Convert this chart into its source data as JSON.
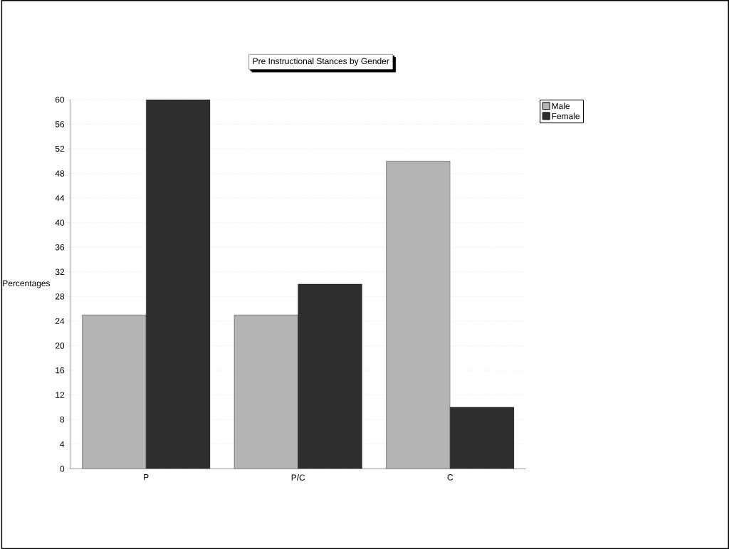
{
  "chart_data": {
    "type": "bar",
    "title": "Pre Instructional Stances by Gender",
    "ylabel": "Percentages",
    "categories": [
      "P",
      "P/C",
      "C"
    ],
    "series": [
      {
        "name": "Male",
        "color": "#b4b4b4",
        "values": [
          25,
          25,
          50
        ]
      },
      {
        "name": "Female",
        "color": "#2e2e2e",
        "values": [
          60,
          30,
          10
        ]
      }
    ],
    "ylim": [
      0,
      60
    ],
    "yticks": [
      0,
      4,
      8,
      12,
      16,
      20,
      24,
      28,
      32,
      36,
      40,
      44,
      48,
      52,
      56,
      60
    ],
    "grid": "y",
    "legend": "top right"
  }
}
